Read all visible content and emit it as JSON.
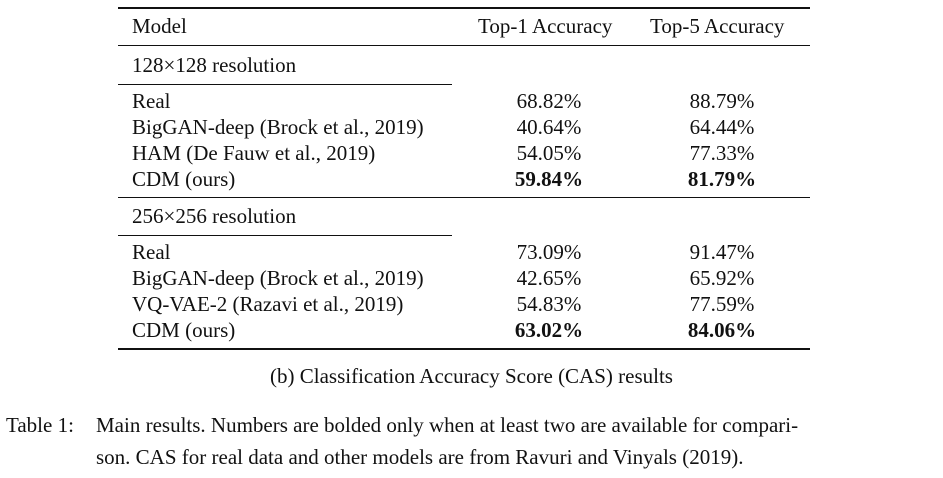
{
  "table": {
    "headers": {
      "model": "Model",
      "top1": "Top-1 Accuracy",
      "top5": "Top-5 Accuracy"
    },
    "sections": [
      {
        "title": "128×128 resolution",
        "rows": [
          {
            "model": "Real",
            "top1": "68.82%",
            "top5": "88.79%",
            "bold": false
          },
          {
            "model": "BigGAN-deep (Brock et al., 2019)",
            "top1": "40.64%",
            "top5": "64.44%",
            "bold": false
          },
          {
            "model": "HAM (De Fauw et al., 2019)",
            "top1": "54.05%",
            "top5": "77.33%",
            "bold": false
          },
          {
            "model": "CDM (ours)",
            "top1": "59.84%",
            "top5": "81.79%",
            "bold": true
          }
        ]
      },
      {
        "title": "256×256 resolution",
        "rows": [
          {
            "model": "Real",
            "top1": "73.09%",
            "top5": "91.47%",
            "bold": false
          },
          {
            "model": "BigGAN-deep (Brock et al., 2019)",
            "top1": "42.65%",
            "top5": "65.92%",
            "bold": false
          },
          {
            "model": "VQ-VAE-2 (Razavi et al., 2019)",
            "top1": "54.83%",
            "top5": "77.59%",
            "bold": false
          },
          {
            "model": "CDM (ours)",
            "top1": "63.02%",
            "top5": "84.06%",
            "bold": true
          }
        ]
      }
    ]
  },
  "captions": {
    "subcaption": "(b) Classification Accuracy Score (CAS) results",
    "table_label": "Table 1:",
    "main_line1": "Main results. Numbers are bolded only when at least two are available for compari-",
    "main_line2": "son. CAS for real data and other models are from Ravuri and Vinyals (2019)."
  }
}
